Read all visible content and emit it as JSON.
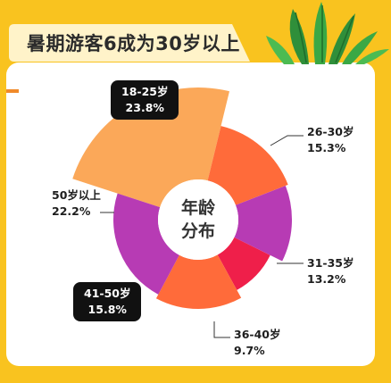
{
  "header": {
    "title": "暑期游客6成为30岁以上"
  },
  "chart_data": {
    "type": "pie",
    "variant": "rose",
    "center_label": [
      "年龄",
      "分布"
    ],
    "categories": [
      "18-25岁",
      "26-30岁",
      "31-35岁",
      "36-40岁",
      "41-50岁",
      "50岁以上"
    ],
    "values": [
      23.8,
      15.3,
      13.2,
      9.7,
      15.8,
      22.2
    ],
    "value_labels": [
      "23.8%",
      "15.3%",
      "13.2%",
      "9.7%",
      "15.8%",
      "22.2%"
    ],
    "colors": [
      "#fba859",
      "#ff6b3a",
      "#b73bb4",
      "#ef1f4a",
      "#ff6b3a",
      "#b73bb4"
    ]
  },
  "colors": {
    "background": "#f9c31f",
    "card": "#ffffff",
    "title_box": "#fff3c9",
    "accent": "#f08a2a"
  },
  "icons": {
    "decoration": "tropical-leaves-icon"
  }
}
